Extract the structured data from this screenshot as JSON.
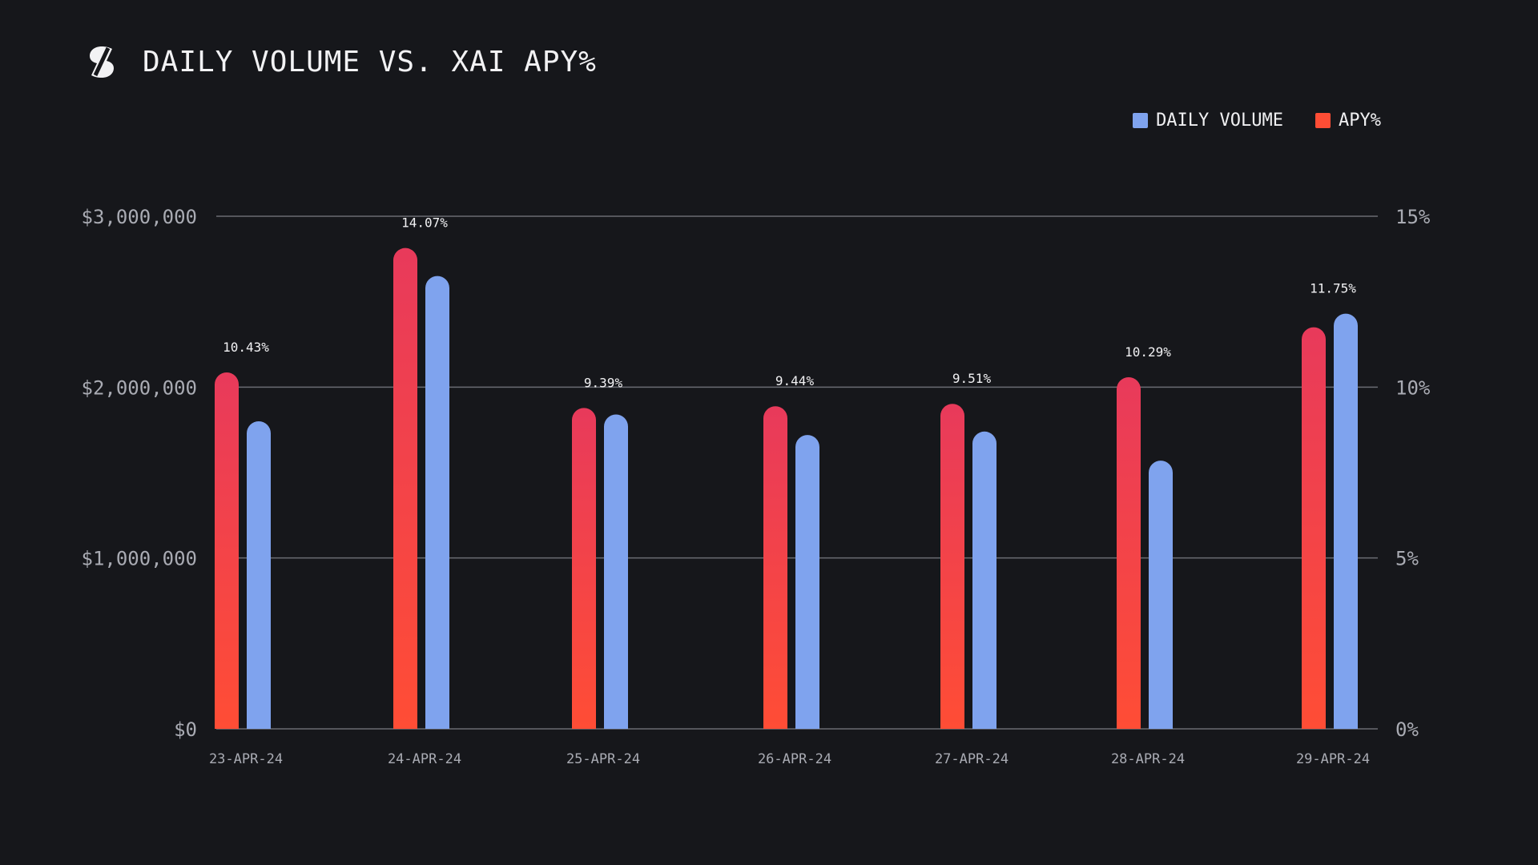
{
  "colors": {
    "background": "#16171b",
    "volume": "#7fa3ee",
    "apy_top": "#e83a5b",
    "apy_bottom": "#ff4d35",
    "grid": "#6a6c73"
  },
  "header": {
    "title": "DAILY VOLUME VS. XAI APY%",
    "logo_icon": "s-logo-icon"
  },
  "legend": {
    "volume_label": "DAILY VOLUME",
    "apy_label": "APY%"
  },
  "chart_data": {
    "type": "bar",
    "title": "DAILY VOLUME VS. XAI APY%",
    "categories": [
      "23-APR-24",
      "24-APR-24",
      "25-APR-24",
      "26-APR-24",
      "27-APR-24",
      "28-APR-24",
      "29-APR-24"
    ],
    "series": [
      {
        "name": "APY%",
        "axis": "right",
        "values": [
          10.43,
          14.07,
          9.39,
          9.44,
          9.51,
          10.29,
          11.75
        ],
        "labels": [
          "10.43%",
          "14.07%",
          "9.39%",
          "9.44%",
          "9.51%",
          "10.29%",
          "11.75%"
        ]
      },
      {
        "name": "DAILY VOLUME",
        "axis": "left",
        "values": [
          1800000,
          2650000,
          1840000,
          1720000,
          1740000,
          1570000,
          2430000
        ]
      }
    ],
    "left_axis": {
      "ylim": [
        0,
        3000000
      ],
      "ticks": [
        0,
        1000000,
        2000000,
        3000000
      ],
      "tick_labels": [
        "$0",
        "$1,000,000",
        "$2,000,000",
        "$3,000,000"
      ]
    },
    "right_axis": {
      "ylim": [
        0,
        15
      ],
      "ticks": [
        0,
        5,
        10,
        15
      ],
      "tick_labels": [
        "0%",
        "5%",
        "10%",
        "15%"
      ]
    },
    "legend_position": "top-right",
    "grid": true
  }
}
